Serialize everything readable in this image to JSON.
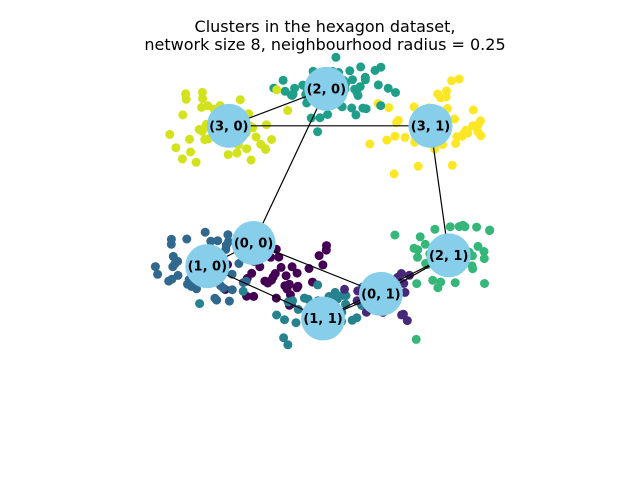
{
  "chart_data": {
    "type": "scatter",
    "title_lines": [
      "Clusters in the hexagon dataset,",
      "network size 8, neighbourhood radius = 0.25"
    ],
    "xlim": [
      -1.5,
      1.5
    ],
    "ylim": [
      -1.2,
      1.2
    ],
    "axes_visible": false,
    "grid": false,
    "node_color": "#87CEEB",
    "edge_color": "#000000",
    "nodes": [
      {
        "label": "(0, 0)",
        "x": -0.45,
        "y": 0.0
      },
      {
        "label": "(1, 0)",
        "x": -0.73,
        "y": -0.15
      },
      {
        "label": "(1, 1)",
        "x": -0.03,
        "y": -0.49
      },
      {
        "label": "(0, 1)",
        "x": 0.32,
        "y": -0.33
      },
      {
        "label": "(2, 1)",
        "x": 0.73,
        "y": -0.08
      },
      {
        "label": "(3, 1)",
        "x": 0.62,
        "y": 0.76
      },
      {
        "label": "(2, 0)",
        "x": -0.01,
        "y": 1.0
      },
      {
        "label": "(3, 0)",
        "x": -0.6,
        "y": 0.76
      }
    ],
    "edges": [
      [
        0,
        1
      ],
      [
        1,
        2
      ],
      [
        2,
        3
      ],
      [
        3,
        4
      ],
      [
        4,
        5
      ],
      [
        5,
        7
      ],
      [
        7,
        6
      ],
      [
        6,
        0
      ],
      [
        0,
        3
      ],
      [
        2,
        4
      ]
    ],
    "clusters": [
      {
        "color": "#440154",
        "cx": -0.3,
        "cy": -0.2,
        "sx": 0.22,
        "sy": 0.12,
        "n": 40
      },
      {
        "color": "#31688e",
        "cx": -0.72,
        "cy": -0.15,
        "sx": 0.17,
        "sy": 0.13,
        "n": 45
      },
      {
        "color": "#26828e",
        "cx": -0.05,
        "cy": -0.45,
        "sx": 0.18,
        "sy": 0.12,
        "n": 45
      },
      {
        "color": "#482878",
        "cx": 0.38,
        "cy": -0.33,
        "sx": 0.13,
        "sy": 0.1,
        "n": 25
      },
      {
        "color": "#35b779",
        "cx": 0.75,
        "cy": -0.08,
        "sx": 0.14,
        "sy": 0.13,
        "n": 45
      },
      {
        "color": "#fde725",
        "cx": 0.65,
        "cy": 0.75,
        "sx": 0.16,
        "sy": 0.13,
        "n": 50
      },
      {
        "color": "#1f9e89",
        "cx": 0.05,
        "cy": 1.0,
        "sx": 0.15,
        "sy": 0.12,
        "n": 60
      },
      {
        "color": "#d2e21b",
        "cx": -0.62,
        "cy": 0.76,
        "sx": 0.16,
        "sy": 0.12,
        "n": 55
      }
    ]
  }
}
